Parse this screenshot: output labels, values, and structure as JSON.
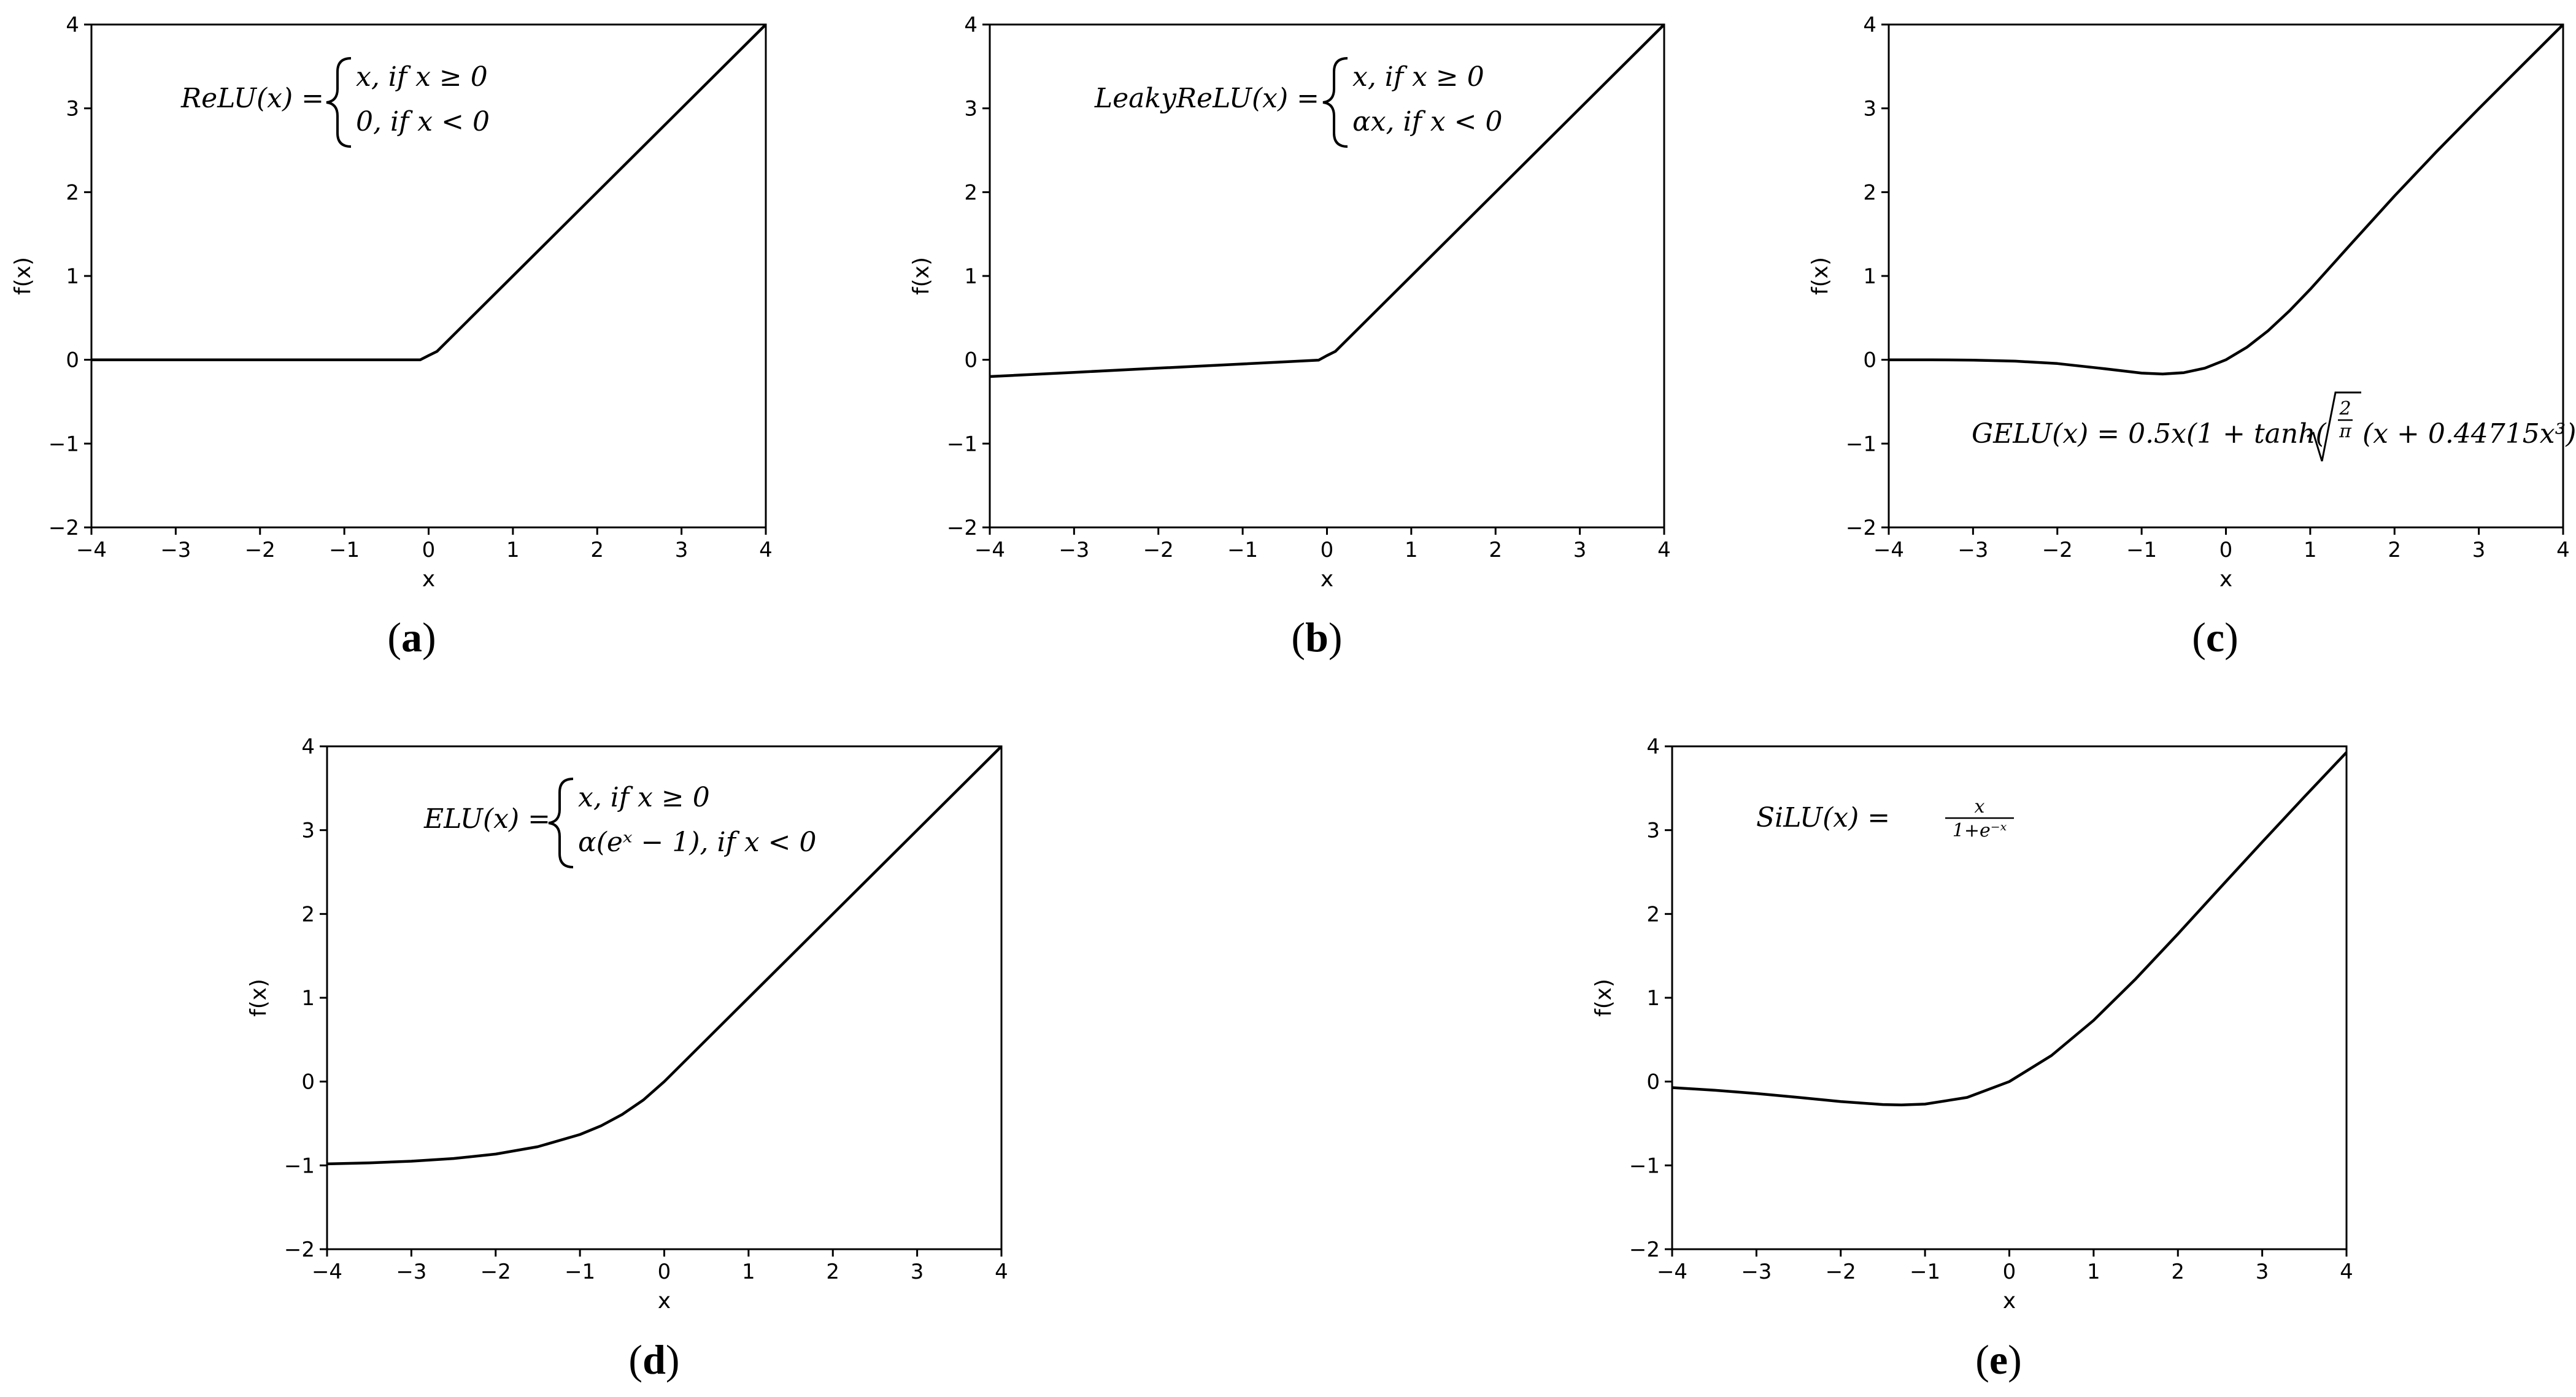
{
  "panels": [
    {
      "id": "a",
      "caption": "a",
      "formula_lines": [
        "ReLU(x) =",
        "x, if x ≥ 0",
        "0, if x < 0"
      ]
    },
    {
      "id": "b",
      "caption": "b",
      "formula_lines": [
        "LeakyReLU(x) =",
        "x, if x ≥ 0",
        "αx, if x < 0"
      ]
    },
    {
      "id": "c",
      "caption": "c",
      "formula_lines": [
        "GELU(x) = 0.5x(1 + tanh(",
        "(x + 0.44715x³)"
      ]
    },
    {
      "id": "d",
      "caption": "d",
      "formula_lines": [
        "ELU(x) =",
        "x, if x ≥ 0",
        "α(eˣ − 1), if x < 0"
      ]
    },
    {
      "id": "e",
      "caption": "e",
      "formula_lines": [
        "SiLU(x) =",
        "x",
        "1+e⁻ˣ"
      ]
    }
  ],
  "chart_data": [
    {
      "type": "line",
      "panel": "a",
      "xlabel": "x",
      "ylabel": "f(x)",
      "xlim": [
        -4,
        4
      ],
      "ylim": [
        -2,
        4
      ],
      "xticks": [
        -4,
        -3,
        -2,
        -1,
        0,
        1,
        2,
        3,
        4
      ],
      "yticks": [
        -2,
        -1,
        0,
        1,
        2,
        3,
        4
      ],
      "xtick_labels": [
        "−4",
        "−3",
        "−2",
        "−1",
        "0",
        "1",
        "2",
        "3",
        "4"
      ],
      "ytick_labels": [
        "−2",
        "−1",
        "0",
        "1",
        "2",
        "3",
        "4"
      ],
      "grid": false,
      "series": [
        {
          "x": [
            -4,
            -3,
            -2,
            -1,
            -0.1,
            0,
            0.1,
            1,
            2,
            3,
            4
          ],
          "y": [
            0,
            0,
            0,
            0,
            0,
            0.05,
            0.1,
            1,
            2,
            3,
            4
          ]
        }
      ]
    },
    {
      "type": "line",
      "panel": "b",
      "xlabel": "x",
      "ylabel": "f(x)",
      "xlim": [
        -4,
        4
      ],
      "ylim": [
        -2,
        4
      ],
      "xticks": [
        -4,
        -3,
        -2,
        -1,
        0,
        1,
        2,
        3,
        4
      ],
      "yticks": [
        -2,
        -1,
        0,
        1,
        2,
        3,
        4
      ],
      "xtick_labels": [
        "−4",
        "−3",
        "−2",
        "−1",
        "0",
        "1",
        "2",
        "3",
        "4"
      ],
      "ytick_labels": [
        "−2",
        "−1",
        "0",
        "1",
        "2",
        "3",
        "4"
      ],
      "grid": false,
      "series": [
        {
          "x": [
            -4,
            -3,
            -2,
            -1,
            -0.1,
            0,
            0.1,
            1,
            2,
            3,
            4
          ],
          "y": [
            -0.2,
            -0.15,
            -0.1,
            -0.05,
            -0.005,
            0.05,
            0.1,
            1,
            2,
            3,
            4
          ]
        }
      ]
    },
    {
      "type": "line",
      "panel": "c",
      "xlabel": "x",
      "ylabel": "f(x)",
      "xlim": [
        -4,
        4
      ],
      "ylim": [
        -2,
        4
      ],
      "xticks": [
        -4,
        -3,
        -2,
        -1,
        0,
        1,
        2,
        3,
        4
      ],
      "yticks": [
        -2,
        -1,
        0,
        1,
        2,
        3,
        4
      ],
      "xtick_labels": [
        "−4",
        "−3",
        "−2",
        "−1",
        "0",
        "1",
        "2",
        "3",
        "4"
      ],
      "ytick_labels": [
        "−2",
        "−1",
        "0",
        "1",
        "2",
        "3",
        "4"
      ],
      "grid": false,
      "series": [
        {
          "x": [
            -4,
            -3.5,
            -3,
            -2.5,
            -2,
            -1.5,
            -1,
            -0.75,
            -0.5,
            -0.25,
            0,
            0.25,
            0.5,
            0.75,
            1,
            1.5,
            2,
            2.5,
            3,
            3.5,
            4
          ],
          "y": [
            0,
            -0.0005,
            -0.004,
            -0.016,
            -0.045,
            -0.1,
            -0.159,
            -0.17,
            -0.154,
            -0.1,
            0,
            0.15,
            0.346,
            0.58,
            0.841,
            1.4,
            1.955,
            2.485,
            2.996,
            3.499,
            4
          ]
        }
      ]
    },
    {
      "type": "line",
      "panel": "d",
      "xlabel": "x",
      "ylabel": "f(x)",
      "xlim": [
        -4,
        4
      ],
      "ylim": [
        -2,
        4
      ],
      "xticks": [
        -4,
        -3,
        -2,
        -1,
        0,
        1,
        2,
        3,
        4
      ],
      "yticks": [
        -2,
        -1,
        0,
        1,
        2,
        3,
        4
      ],
      "xtick_labels": [
        "−4",
        "−3",
        "−2",
        "−1",
        "0",
        "1",
        "2",
        "3",
        "4"
      ],
      "ytick_labels": [
        "−2",
        "−1",
        "0",
        "1",
        "2",
        "3",
        "4"
      ],
      "grid": false,
      "series": [
        {
          "x": [
            -4,
            -3.5,
            -3,
            -2.5,
            -2,
            -1.5,
            -1,
            -0.75,
            -0.5,
            -0.25,
            0,
            1,
            2,
            3,
            4
          ],
          "y": [
            -0.982,
            -0.97,
            -0.95,
            -0.918,
            -0.865,
            -0.777,
            -0.632,
            -0.528,
            -0.393,
            -0.221,
            0,
            1,
            2,
            3,
            4
          ]
        }
      ]
    },
    {
      "type": "line",
      "panel": "e",
      "xlabel": "x",
      "ylabel": "f(x)",
      "xlim": [
        -4,
        4
      ],
      "ylim": [
        -2,
        4
      ],
      "xticks": [
        -4,
        -3,
        -2,
        -1,
        0,
        1,
        2,
        3,
        4
      ],
      "yticks": [
        -2,
        -1,
        0,
        1,
        2,
        3,
        4
      ],
      "xtick_labels": [
        "−4",
        "−3",
        "−2",
        "−1",
        "0",
        "1",
        "2",
        "3",
        "4"
      ],
      "ytick_labels": [
        "−2",
        "−1",
        "0",
        "1",
        "2",
        "3",
        "4"
      ],
      "grid": false,
      "series": [
        {
          "x": [
            -4,
            -3.5,
            -3,
            -2.5,
            -2,
            -1.5,
            -1.28,
            -1,
            -0.5,
            0,
            0.5,
            1,
            1.5,
            2,
            2.5,
            3,
            3.5,
            4
          ],
          "y": [
            -0.072,
            -0.103,
            -0.142,
            -0.189,
            -0.238,
            -0.274,
            -0.278,
            -0.269,
            -0.189,
            0,
            0.311,
            0.731,
            1.226,
            1.762,
            2.311,
            2.858,
            3.397,
            3.928
          ]
        }
      ]
    }
  ]
}
